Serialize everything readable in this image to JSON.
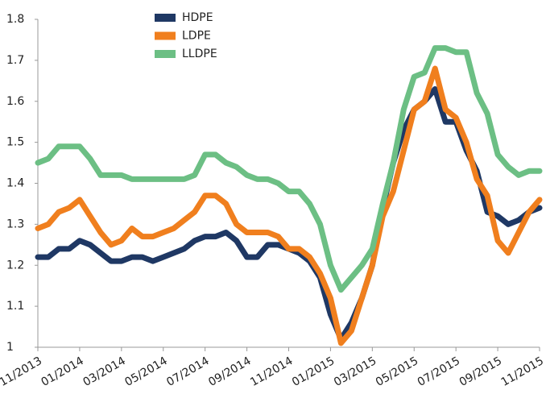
{
  "chart_data": {
    "type": "line",
    "categories": [
      "11/2013",
      null,
      null,
      null,
      "01/2014",
      null,
      null,
      null,
      "03/2014",
      null,
      null,
      null,
      "05/2014",
      null,
      null,
      null,
      "07/2014",
      null,
      null,
      null,
      "09/2014",
      null,
      null,
      null,
      "11/2014",
      null,
      null,
      null,
      "01/2015",
      null,
      null,
      null,
      "03/2015",
      null,
      null,
      null,
      "05/2015",
      null,
      null,
      null,
      "07/2015",
      null,
      null,
      null,
      "09/2015",
      null,
      null,
      null,
      "11/2015"
    ],
    "series": [
      {
        "name": "HDPE",
        "color": "#1f3864",
        "values": [
          1.22,
          1.22,
          1.24,
          1.24,
          1.26,
          1.25,
          1.23,
          1.21,
          1.21,
          1.22,
          1.22,
          1.21,
          1.22,
          1.23,
          1.24,
          1.26,
          1.27,
          1.27,
          1.28,
          1.26,
          1.22,
          1.22,
          1.25,
          1.25,
          1.24,
          1.23,
          1.21,
          1.17,
          1.08,
          1.02,
          1.06,
          1.12,
          1.2,
          1.34,
          1.45,
          1.53,
          1.58,
          1.6,
          1.63,
          1.55,
          1.55,
          1.48,
          1.43,
          1.33,
          1.32,
          1.3,
          1.31,
          1.33,
          1.34
        ]
      },
      {
        "name": "LDPE",
        "color": "#f07f1e",
        "values": [
          1.29,
          1.3,
          1.33,
          1.34,
          1.36,
          1.32,
          1.28,
          1.25,
          1.26,
          1.29,
          1.27,
          1.27,
          1.28,
          1.29,
          1.31,
          1.33,
          1.37,
          1.37,
          1.35,
          1.3,
          1.28,
          1.28,
          1.28,
          1.27,
          1.24,
          1.24,
          1.22,
          1.18,
          1.12,
          1.01,
          1.04,
          1.12,
          1.2,
          1.32,
          1.38,
          1.48,
          1.58,
          1.6,
          1.68,
          1.58,
          1.56,
          1.5,
          1.41,
          1.37,
          1.26,
          1.23,
          1.28,
          1.33,
          1.36
        ]
      },
      {
        "name": "LLDPE",
        "color": "#6cbf84",
        "values": [
          1.45,
          1.46,
          1.49,
          1.49,
          1.49,
          1.46,
          1.42,
          1.42,
          1.42,
          1.41,
          1.41,
          1.41,
          1.41,
          1.41,
          1.41,
          1.42,
          1.47,
          1.47,
          1.45,
          1.44,
          1.42,
          1.41,
          1.41,
          1.4,
          1.38,
          1.38,
          1.35,
          1.3,
          1.2,
          1.14,
          1.17,
          1.2,
          1.24,
          1.35,
          1.45,
          1.58,
          1.66,
          1.67,
          1.73,
          1.73,
          1.72,
          1.72,
          1.62,
          1.57,
          1.47,
          1.44,
          1.42,
          1.43,
          1.43
        ]
      }
    ],
    "ylim": [
      1,
      1.8
    ],
    "yticks": [
      1,
      1.1,
      1.2,
      1.3,
      1.4,
      1.5,
      1.6,
      1.7,
      1.8
    ],
    "legend": "top"
  }
}
